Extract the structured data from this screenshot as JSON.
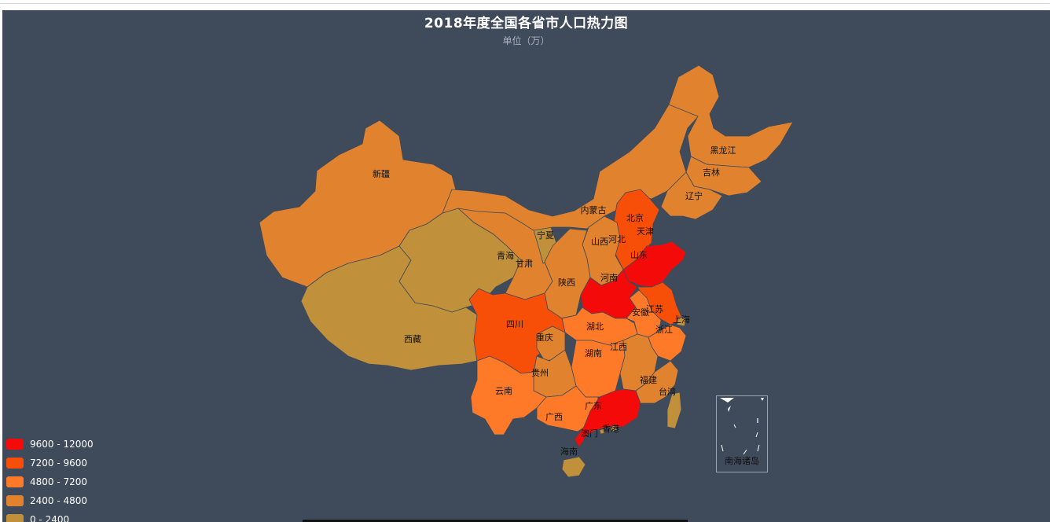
{
  "title": "2018年度全国各省市人口热力图",
  "subtitle": "单位（万）",
  "colors": {
    "background": "#3f4a5a",
    "bin_0": "#c0903a",
    "bin_1": "#e0822e",
    "bin_2": "#ff7a28",
    "bin_3": "#f84f08",
    "bin_4": "#f50a0a"
  },
  "legend": [
    {
      "label": "9600 - 12000",
      "color": "#f50a0a"
    },
    {
      "label": "7200 - 9600",
      "color": "#f84f08"
    },
    {
      "label": "4800 - 7200",
      "color": "#ff7a28"
    },
    {
      "label": "2400 - 4800",
      "color": "#e0822e"
    },
    {
      "label": "0 - 2400",
      "color": "#c0903a"
    }
  ],
  "provinces": [
    {
      "name": "新疆",
      "bin": 1
    },
    {
      "name": "西藏",
      "bin": 0
    },
    {
      "name": "青海",
      "bin": 0
    },
    {
      "name": "甘肃",
      "bin": 1
    },
    {
      "name": "宁夏",
      "bin": 0
    },
    {
      "name": "内蒙古",
      "bin": 1
    },
    {
      "name": "黑龙江",
      "bin": 1
    },
    {
      "name": "吉林",
      "bin": 1
    },
    {
      "name": "辽宁",
      "bin": 1
    },
    {
      "name": "北京",
      "bin": 0
    },
    {
      "name": "天津",
      "bin": 0
    },
    {
      "name": "河北",
      "bin": 3
    },
    {
      "name": "山西",
      "bin": 1
    },
    {
      "name": "陕西",
      "bin": 1
    },
    {
      "name": "山东",
      "bin": 4
    },
    {
      "name": "河南",
      "bin": 4
    },
    {
      "name": "江苏",
      "bin": 3
    },
    {
      "name": "安徽",
      "bin": 2
    },
    {
      "name": "上海",
      "bin": 0
    },
    {
      "name": "浙江",
      "bin": 2
    },
    {
      "name": "湖北",
      "bin": 2
    },
    {
      "name": "四川",
      "bin": 3
    },
    {
      "name": "重庆",
      "bin": 1
    },
    {
      "name": "湖南",
      "bin": 2
    },
    {
      "name": "江西",
      "bin": 1
    },
    {
      "name": "贵州",
      "bin": 1
    },
    {
      "name": "云南",
      "bin": 2
    },
    {
      "name": "广西",
      "bin": 2
    },
    {
      "name": "广东",
      "bin": 4
    },
    {
      "name": "福建",
      "bin": 1
    },
    {
      "name": "台湾",
      "bin": 0
    },
    {
      "name": "香港",
      "bin": 0
    },
    {
      "name": "澳门",
      "bin": 0
    },
    {
      "name": "海南",
      "bin": 0
    }
  ],
  "inset_label": "南海诸岛"
}
